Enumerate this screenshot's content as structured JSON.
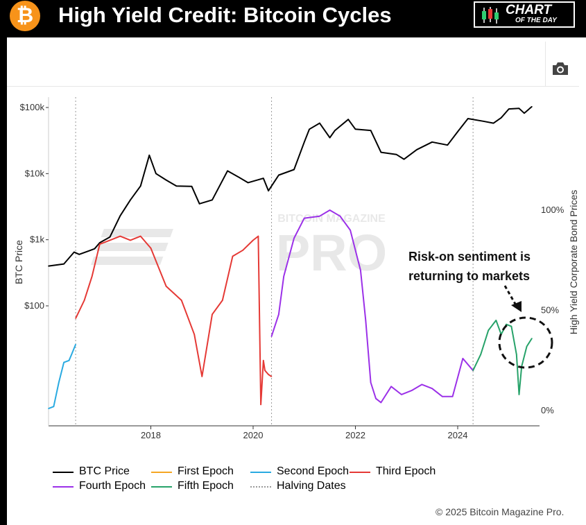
{
  "header": {
    "logo_glyph": "₿",
    "title": "High Yield Credit: Bitcoin Cycles",
    "badge_line1": "CHART",
    "badge_line2": "OF THE DAY"
  },
  "toolbar": {
    "camera_icon": "camera-icon"
  },
  "annotation": {
    "line1": "Risk-on sentiment is",
    "line2": "returning to markets"
  },
  "watermark": {
    "small": "BITCOIN MAGAZINE",
    "big": "PRO"
  },
  "copyright": "© 2025 Bitcoin Magazine Pro.",
  "chart_data": {
    "type": "line",
    "title": "",
    "x_axis": {
      "ticks": [
        "2018",
        "2020",
        "2022",
        "2024"
      ],
      "range": [
        "2016-01",
        "2025-06"
      ]
    },
    "y_left": {
      "label": "BTC Price",
      "scale": "log",
      "ticks": [
        "$100",
        "$1k",
        "$10k",
        "$100k"
      ],
      "tick_values": [
        100,
        1000,
        10000,
        100000
      ]
    },
    "y_right": {
      "label": "High Yield Corporate Bond Prices",
      "ticks": [
        "0%",
        "50%",
        "100%"
      ],
      "tick_values": [
        0,
        50,
        100
      ]
    },
    "grid": false,
    "halving_dates": [
      2016.53,
      2020.36,
      2024.3
    ],
    "legend": [
      {
        "name": "BTC Price",
        "color": "#000000",
        "dashed": false
      },
      {
        "name": "First Epoch",
        "color": "#f5a623",
        "dashed": false
      },
      {
        "name": "Second Epoch",
        "color": "#29aae1",
        "dashed": false
      },
      {
        "name": "Third Epoch",
        "color": "#e53935",
        "dashed": false
      },
      {
        "name": "Fourth Epoch",
        "color": "#9b30e8",
        "dashed": false
      },
      {
        "name": "Fifth Epoch",
        "color": "#26a269",
        "dashed": false
      },
      {
        "name": "Halving Dates",
        "color": "#999999",
        "dashed": true
      }
    ],
    "series": [
      {
        "name": "BTC Price",
        "axis": "left",
        "color": "#000000",
        "x": [
          2016.0,
          2016.3,
          2016.5,
          2016.6,
          2016.9,
          2017.0,
          2017.2,
          2017.4,
          2017.6,
          2017.8,
          2017.97,
          2018.1,
          2018.3,
          2018.5,
          2018.8,
          2018.95,
          2019.2,
          2019.5,
          2019.7,
          2019.9,
          2020.2,
          2020.3,
          2020.5,
          2020.8,
          2021.0,
          2021.1,
          2021.3,
          2021.5,
          2021.6,
          2021.86,
          2022.0,
          2022.3,
          2022.5,
          2022.8,
          2022.95,
          2023.2,
          2023.5,
          2023.8,
          2024.0,
          2024.2,
          2024.5,
          2024.7,
          2024.85,
          2025.0,
          2025.2,
          2025.3,
          2025.45
        ],
        "y": [
          400,
          430,
          650,
          600,
          730,
          900,
          1100,
          2300,
          4000,
          6500,
          19000,
          10000,
          8000,
          6500,
          6400,
          3500,
          4000,
          11000,
          9000,
          7300,
          8500,
          5500,
          9500,
          11500,
          30000,
          47000,
          58000,
          35000,
          45000,
          66000,
          47000,
          45000,
          21000,
          19500,
          16500,
          23000,
          30000,
          27000,
          43000,
          68000,
          62000,
          58000,
          70000,
          95000,
          97000,
          82000,
          103000
        ]
      },
      {
        "name": "Second Epoch",
        "axis": "right",
        "color": "#29aae1",
        "x": [
          2016.0,
          2016.1,
          2016.2,
          2016.3,
          2016.4,
          2016.45,
          2016.53
        ],
        "y": [
          1,
          2,
          14,
          24,
          25,
          28,
          33
        ]
      },
      {
        "name": "Third Epoch",
        "axis": "right",
        "color": "#e53935",
        "x": [
          2016.53,
          2016.7,
          2016.85,
          2017.0,
          2017.2,
          2017.4,
          2017.6,
          2017.8,
          2018.0,
          2018.3,
          2018.6,
          2018.85,
          2019.0,
          2019.2,
          2019.4,
          2019.6,
          2019.8,
          2020.0,
          2020.1,
          2020.15,
          2020.2,
          2020.23,
          2020.3,
          2020.36
        ],
        "y": [
          46,
          55,
          67,
          83,
          85,
          87,
          85,
          87,
          81,
          62,
          55,
          38,
          17,
          48,
          55,
          77,
          80,
          85,
          87,
          3,
          25,
          20,
          18,
          17
        ]
      },
      {
        "name": "Fourth Epoch",
        "axis": "right",
        "color": "#9b30e8",
        "x": [
          2020.36,
          2020.5,
          2020.6,
          2020.8,
          2021.0,
          2021.3,
          2021.5,
          2021.7,
          2021.9,
          2022.1,
          2022.2,
          2022.3,
          2022.4,
          2022.5,
          2022.7,
          2022.9,
          2023.1,
          2023.3,
          2023.5,
          2023.7,
          2023.9,
          2024.1,
          2024.3
        ],
        "y": [
          37,
          48,
          67,
          86,
          96,
          97,
          100,
          97,
          90,
          70,
          45,
          14,
          6,
          4,
          12,
          8,
          10,
          13,
          11,
          7,
          7,
          26,
          20
        ]
      },
      {
        "name": "Fifth Epoch",
        "axis": "right",
        "color": "#26a269",
        "x": [
          2024.3,
          2024.45,
          2024.6,
          2024.75,
          2024.85,
          2024.95,
          2025.05,
          2025.15,
          2025.2,
          2025.25,
          2025.35,
          2025.45
        ],
        "y": [
          20,
          28,
          40,
          45,
          38,
          43,
          42,
          28,
          8,
          22,
          32,
          36
        ]
      }
    ]
  }
}
